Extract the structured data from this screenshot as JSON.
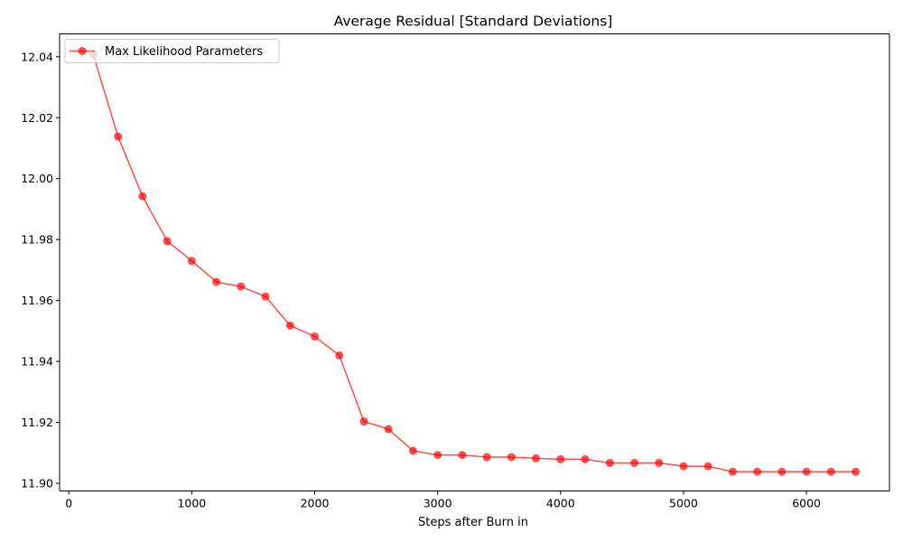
{
  "chart_data": {
    "type": "line",
    "title": "Average Residual [Standard Deviations]",
    "xlabel": "Steps after Burn in",
    "ylabel": "",
    "xlim": [
      -75,
      6675
    ],
    "ylim": [
      11.8975,
      12.0475
    ],
    "xticks": [
      0,
      1000,
      2000,
      3000,
      4000,
      5000,
      6000
    ],
    "yticks": [
      11.9,
      11.92,
      11.94,
      11.96,
      11.98,
      12.0,
      12.02,
      12.04
    ],
    "ytick_labels": [
      "11.90",
      "11.92",
      "11.94",
      "11.96",
      "11.98",
      "12.00",
      "12.02",
      "12.04"
    ],
    "grid": false,
    "legend_position": "upper left",
    "x": [
      200,
      400,
      600,
      800,
      1000,
      1200,
      1400,
      1600,
      1800,
      2000,
      2200,
      2400,
      2600,
      2800,
      3000,
      3200,
      3400,
      3600,
      3800,
      4000,
      4200,
      4400,
      4600,
      4800,
      5000,
      5200,
      5400,
      5600,
      5800,
      6000,
      6200,
      6400
    ],
    "series": [
      {
        "name": "Max Likelihood Parameters",
        "color": "#ff0000",
        "values": [
          12.0405,
          12.0138,
          11.9942,
          11.9795,
          11.973,
          11.9661,
          11.9646,
          11.9613,
          11.9518,
          11.9482,
          11.942,
          11.9203,
          11.9178,
          11.9107,
          11.9093,
          11.9093,
          11.9086,
          11.9086,
          11.9082,
          11.9079,
          11.9079,
          11.9067,
          11.9067,
          11.9067,
          11.9056,
          11.9056,
          11.9038,
          11.9038,
          11.9038,
          11.9038,
          11.9038,
          11.9038
        ]
      }
    ]
  }
}
